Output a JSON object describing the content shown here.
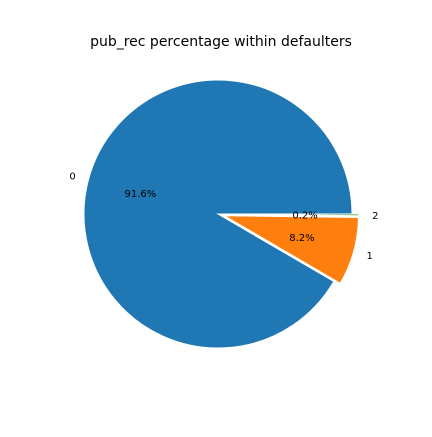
{
  "chart_data": {
    "type": "pie",
    "title": "pub_rec percentage within defaulters",
    "categories": [
      "0",
      "1",
      "2"
    ],
    "values": [
      91.6,
      8.2,
      0.2
    ],
    "percent_labels": [
      "91.6%",
      "8.2%",
      "0.2%"
    ],
    "colors": [
      "#1f77b4",
      "#ff7f0e",
      "#2ca02c"
    ],
    "exploded": [
      false,
      true,
      true
    ],
    "start_angle_deg": 0,
    "direction": "counterclockwise"
  }
}
